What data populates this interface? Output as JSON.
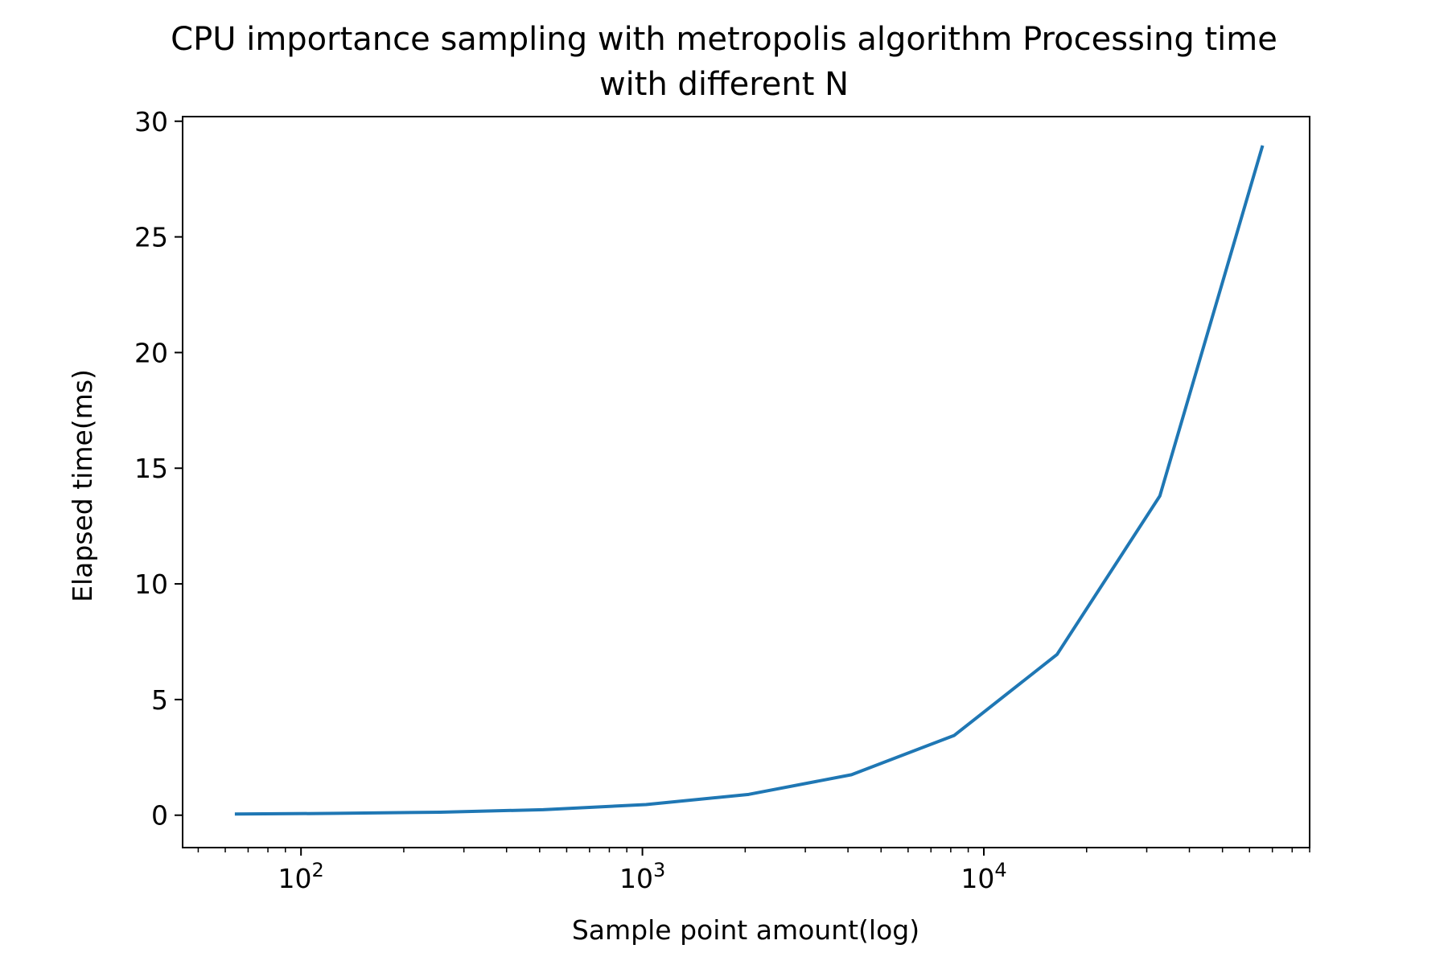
{
  "chart_data": {
    "type": "line",
    "title": "CPU importance sampling with metropolis algorithm Processing time",
    "subtitle": "with different N",
    "xlabel": "Sample point amount(log)",
    "ylabel": "Elapsed time(ms)",
    "xscale": "log",
    "grid": false,
    "xlim": [
      45,
      90000
    ],
    "ylim": [
      -1.4,
      30.2
    ],
    "xticks": [
      {
        "value": 100,
        "base": "10",
        "exp": "2"
      },
      {
        "value": 1000,
        "base": "10",
        "exp": "3"
      },
      {
        "value": 10000,
        "base": "10",
        "exp": "4"
      }
    ],
    "yticks": [
      {
        "value": 0,
        "label": "0"
      },
      {
        "value": 5,
        "label": "5"
      },
      {
        "value": 10,
        "label": "10"
      },
      {
        "value": 15,
        "label": "15"
      },
      {
        "value": 20,
        "label": "20"
      },
      {
        "value": 25,
        "label": "25"
      },
      {
        "value": 30,
        "label": "30"
      }
    ],
    "series": [
      {
        "color": "#1f77b4",
        "x": [
          64,
          128,
          256,
          512,
          1024,
          2048,
          4096,
          8192,
          16384,
          32768,
          65536
        ],
        "y": [
          0.05,
          0.08,
          0.13,
          0.24,
          0.46,
          0.9,
          1.75,
          3.45,
          6.95,
          13.8,
          28.95
        ]
      }
    ]
  }
}
